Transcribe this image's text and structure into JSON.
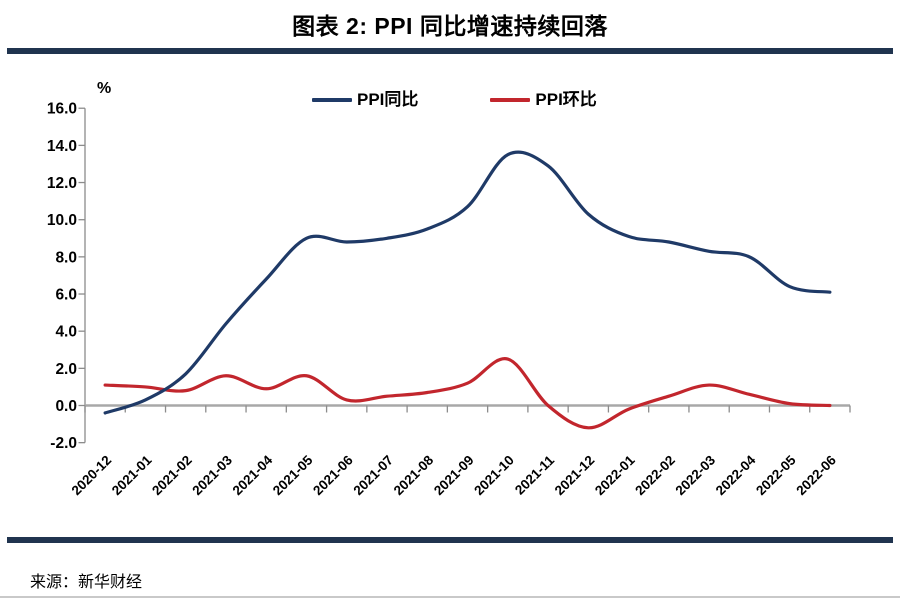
{
  "figure": {
    "title": "图表 2: PPI 同比增速持续回落",
    "source": "来源：新华财经"
  },
  "chart_data": {
    "type": "line",
    "title": "图表 2: PPI 同比增速持续回落",
    "xlabel": "",
    "ylabel": "%",
    "ylim": [
      -2.0,
      16.0
    ],
    "ytick_step": 2.0,
    "yticks": [
      "16.0",
      "14.0",
      "12.0",
      "10.0",
      "8.0",
      "6.0",
      "4.0",
      "2.0",
      "0.0",
      "-2.0"
    ],
    "grid": false,
    "smooth": true,
    "legend_position": "top",
    "categories": [
      "2020-12",
      "2021-01",
      "2021-02",
      "2021-03",
      "2021-04",
      "2021-05",
      "2021-06",
      "2021-07",
      "2021-08",
      "2021-09",
      "2021-10",
      "2021-11",
      "2021-12",
      "2022-01",
      "2022-02",
      "2022-03",
      "2022-04",
      "2022-05",
      "2022-06"
    ],
    "series": [
      {
        "name": "PPI同比",
        "color": "#1f3a67",
        "values": [
          -0.4,
          0.3,
          1.7,
          4.4,
          6.8,
          9.0,
          8.8,
          9.0,
          9.5,
          10.7,
          13.5,
          12.9,
          10.3,
          9.1,
          8.8,
          8.3,
          8.0,
          6.4,
          6.1
        ]
      },
      {
        "name": "PPI环比",
        "color": "#c2262d",
        "values": [
          1.1,
          1.0,
          0.8,
          1.6,
          0.9,
          1.6,
          0.3,
          0.5,
          0.7,
          1.2,
          2.5,
          0.0,
          -1.2,
          -0.2,
          0.5,
          1.1,
          0.6,
          0.1,
          0.0
        ]
      }
    ],
    "axis_color": "#a8a8a8",
    "tick_color": "#8c8c8c"
  }
}
